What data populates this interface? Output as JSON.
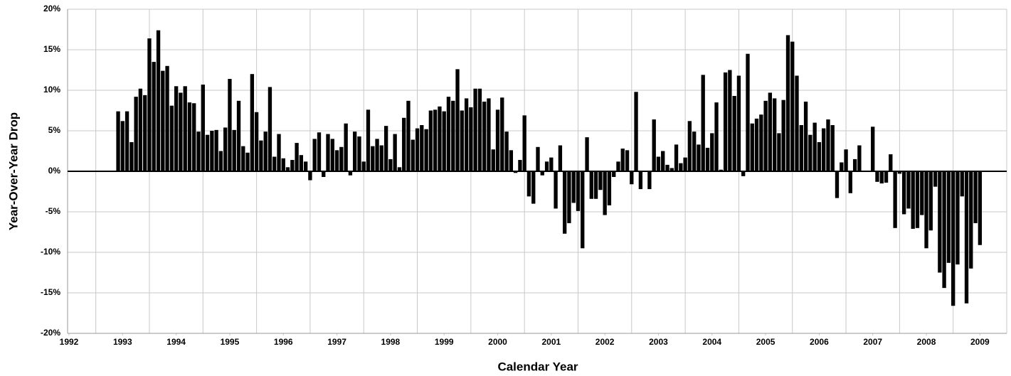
{
  "chart_data": {
    "type": "bar",
    "xlabel": "Calendar Year",
    "ylabel": "Year-Over-Year Drop",
    "color": "#000000",
    "grid": true,
    "xlim": [
      1992,
      2009.5
    ],
    "xticks": [
      1992,
      1993,
      1994,
      1995,
      1996,
      1997,
      1998,
      1999,
      2000,
      2001,
      2002,
      2003,
      2004,
      2005,
      2006,
      2007,
      2008,
      2009
    ],
    "ylim": [
      -20,
      20
    ],
    "yticks": [
      {
        "value": -20,
        "label": "-20%"
      },
      {
        "value": -15,
        "label": "-15%"
      },
      {
        "value": -10,
        "label": "-10%"
      },
      {
        "value": -5,
        "label": "-5%"
      },
      {
        "value": 0,
        "label": "0%"
      },
      {
        "value": 5,
        "label": "5%"
      },
      {
        "value": 10,
        "label": "10%"
      },
      {
        "value": 15,
        "label": "15%"
      },
      {
        "value": 20,
        "label": "20%"
      }
    ],
    "x": [
      1992.917,
      1993,
      1993.083,
      1993.167,
      1993.25,
      1993.333,
      1993.417,
      1993.5,
      1993.583,
      1993.667,
      1993.75,
      1993.833,
      1993.917,
      1994,
      1994.083,
      1994.167,
      1994.25,
      1994.333,
      1994.417,
      1994.5,
      1994.583,
      1994.667,
      1994.75,
      1994.833,
      1994.917,
      1995,
      1995.083,
      1995.167,
      1995.25,
      1995.333,
      1995.417,
      1995.5,
      1995.583,
      1995.667,
      1995.75,
      1995.833,
      1995.917,
      1996,
      1996.083,
      1996.167,
      1996.25,
      1996.333,
      1996.417,
      1996.5,
      1996.583,
      1996.667,
      1996.75,
      1996.833,
      1996.917,
      1997,
      1997.083,
      1997.167,
      1997.25,
      1997.333,
      1997.417,
      1997.5,
      1997.583,
      1997.667,
      1997.75,
      1997.833,
      1997.917,
      1998,
      1998.083,
      1998.167,
      1998.25,
      1998.333,
      1998.417,
      1998.5,
      1998.583,
      1998.667,
      1998.75,
      1998.833,
      1998.917,
      1999,
      1999.083,
      1999.167,
      1999.25,
      1999.333,
      1999.417,
      1999.5,
      1999.583,
      1999.667,
      1999.75,
      1999.833,
      1999.917,
      2000,
      2000.083,
      2000.167,
      2000.25,
      2000.333,
      2000.417,
      2000.5,
      2000.583,
      2000.667,
      2000.75,
      2000.833,
      2000.917,
      2001,
      2001.083,
      2001.167,
      2001.25,
      2001.333,
      2001.417,
      2001.5,
      2001.583,
      2001.667,
      2001.75,
      2001.833,
      2001.917,
      2002,
      2002.083,
      2002.167,
      2002.25,
      2002.333,
      2002.417,
      2002.5,
      2002.583,
      2002.667,
      2002.75,
      2002.833,
      2002.917,
      2003,
      2003.083,
      2003.167,
      2003.25,
      2003.333,
      2003.417,
      2003.5,
      2003.583,
      2003.667,
      2003.75,
      2003.833,
      2003.917,
      2004,
      2004.083,
      2004.167,
      2004.25,
      2004.333,
      2004.417,
      2004.5,
      2004.583,
      2004.667,
      2004.75,
      2004.833,
      2004.917,
      2005,
      2005.083,
      2005.167,
      2005.25,
      2005.333,
      2005.417,
      2005.5,
      2005.583,
      2005.667,
      2005.75,
      2005.833,
      2005.917,
      2006,
      2006.083,
      2006.167,
      2006.25,
      2006.333,
      2006.417,
      2006.5,
      2006.583,
      2006.667,
      2006.75,
      2006.833,
      2006.917,
      2007,
      2007.083,
      2007.167,
      2007.25,
      2007.333,
      2007.417,
      2007.5,
      2007.583,
      2007.667,
      2007.75,
      2007.833,
      2007.917,
      2008,
      2008.083,
      2008.167,
      2008.25,
      2008.333,
      2008.417,
      2008.5,
      2008.583,
      2008.667,
      2008.75,
      2008.833,
      2008.917,
      2009
    ],
    "values": [
      7.4,
      6.2,
      7.4,
      3.6,
      9.2,
      10.2,
      9.4,
      16.4,
      13.5,
      17.4,
      12.4,
      13.0,
      8.1,
      10.5,
      9.7,
      10.5,
      8.5,
      8.4,
      4.9,
      10.7,
      4.5,
      5.0,
      5.1,
      2.5,
      5.4,
      11.4,
      5.1,
      8.7,
      3.1,
      2.3,
      12.0,
      7.3,
      3.8,
      4.9,
      10.4,
      1.8,
      4.6,
      1.6,
      0.5,
      1.4,
      3.5,
      2.0,
      1.2,
      -1.1,
      4.0,
      4.8,
      -0.7,
      4.6,
      4.0,
      2.6,
      3.0,
      5.9,
      -0.5,
      4.9,
      4.3,
      1.2,
      7.6,
      3.1,
      4.0,
      3.2,
      5.6,
      1.5,
      4.6,
      0.5,
      6.6,
      8.7,
      3.9,
      5.3,
      5.7,
      5.2,
      7.5,
      7.6,
      8.0,
      7.4,
      9.2,
      8.7,
      12.6,
      7.5,
      9.0,
      7.9,
      10.2,
      10.2,
      8.6,
      9.0,
      2.7,
      7.6,
      9.1,
      4.9,
      2.6,
      -0.2,
      1.4,
      6.9,
      -3.1,
      -4.0,
      3.0,
      -0.5,
      1.2,
      1.7,
      -4.6,
      3.2,
      -7.7,
      -6.4,
      -3.9,
      -4.9,
      -9.5,
      4.2,
      -3.4,
      -3.4,
      -2.3,
      -5.4,
      -4.2,
      -0.7,
      1.2,
      2.8,
      2.6,
      -1.6,
      9.8,
      -2.2,
      0.0,
      -2.2,
      6.4,
      1.8,
      2.5,
      0.8,
      0.4,
      3.3,
      1.0,
      1.7,
      6.2,
      4.9,
      3.3,
      11.9,
      2.9,
      4.7,
      8.5,
      0.2,
      12.2,
      12.5,
      9.3,
      11.8,
      -0.6,
      14.5,
      5.9,
      6.5,
      7.0,
      8.7,
      9.7,
      9.0,
      4.7,
      8.8,
      16.8,
      16.0,
      11.8,
      5.7,
      8.6,
      4.5,
      6.0,
      3.6,
      5.3,
      6.4,
      5.7,
      -3.3,
      1.1,
      2.7,
      -2.7,
      1.5,
      3.2,
      0.0,
      0.0,
      5.5,
      -1.3,
      -1.5,
      -1.4,
      2.1,
      -7.0,
      -0.3,
      -5.3,
      -4.6,
      -7.1,
      -7.0,
      -5.4,
      -9.5,
      -7.3,
      -1.9,
      -12.5,
      -14.4,
      -11.3,
      -16.6,
      -11.5,
      -3.1,
      -16.3,
      -12.0,
      -6.4,
      -9.1
    ]
  }
}
